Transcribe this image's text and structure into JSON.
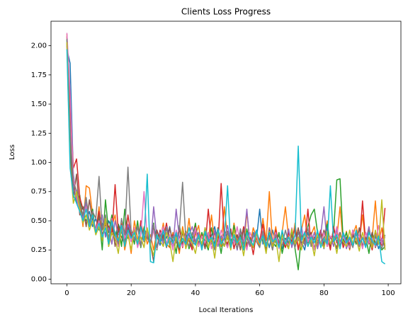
{
  "chart_data": {
    "type": "line",
    "title": "Clients Loss Progress",
    "xlabel": "Local Iterations",
    "ylabel": "Loss",
    "x": [
      0,
      1,
      2,
      3,
      4,
      5,
      6,
      7,
      8,
      9,
      10,
      11,
      12,
      13,
      14,
      15,
      16,
      17,
      18,
      19,
      20,
      21,
      22,
      23,
      24,
      25,
      26,
      27,
      28,
      29,
      30,
      31,
      32,
      33,
      34,
      35,
      36,
      37,
      38,
      39,
      40,
      41,
      42,
      43,
      44,
      45,
      46,
      47,
      48,
      49,
      50,
      51,
      52,
      53,
      54,
      55,
      56,
      57,
      58,
      59,
      60,
      61,
      62,
      63,
      64,
      65,
      66,
      67,
      68,
      69,
      70,
      71,
      72,
      73,
      74,
      75,
      76,
      77,
      78,
      79,
      80,
      81,
      82,
      83,
      84,
      85,
      86,
      87,
      88,
      89,
      90,
      91,
      92,
      93,
      94,
      95,
      96,
      97,
      98,
      99
    ],
    "xlim": [
      -4.95,
      103.95
    ],
    "xticks": [
      0,
      20,
      40,
      60,
      80,
      100
    ],
    "ylim": [
      -0.04,
      2.21
    ],
    "yticks": [
      {
        "value": 0,
        "label": "0.00"
      },
      {
        "value": 0.25,
        "label": "0.25"
      },
      {
        "value": 0.5,
        "label": "0.50"
      },
      {
        "value": 0.75,
        "label": "0.75"
      },
      {
        "value": 1,
        "label": "1.00"
      },
      {
        "value": 1.25,
        "label": "1.25"
      },
      {
        "value": 1.5,
        "label": "1.50"
      },
      {
        "value": 1.75,
        "label": "1.75"
      },
      {
        "value": 2,
        "label": "2.00"
      }
    ],
    "grid": false,
    "series": [
      {
        "color": "#1f77b4",
        "values": [
          1.97,
          1.85,
          0.9,
          0.7,
          0.62,
          0.55,
          0.5,
          0.58,
          0.45,
          0.52,
          0.42,
          0.48,
          0.38,
          0.5,
          0.44,
          0.36,
          0.47,
          0.4,
          0.33,
          0.45,
          0.38,
          0.42,
          0.3,
          0.46,
          0.35,
          0.4,
          0.32,
          0.44,
          0.37,
          0.29,
          0.41,
          0.35,
          0.45,
          0.3,
          0.38,
          0.27,
          0.42,
          0.33,
          0.39,
          0.28,
          0.44,
          0.35,
          0.31,
          0.4,
          0.26,
          0.37,
          0.45,
          0.3,
          0.35,
          0.28,
          0.41,
          0.33,
          0.38,
          0.25,
          0.43,
          0.3,
          0.36,
          0.29,
          0.4,
          0.34,
          0.6,
          0.3,
          0.37,
          0.27,
          0.42,
          0.31,
          0.38,
          0.26,
          0.35,
          0.3,
          0.41,
          0.28,
          0.36,
          0.32,
          0.25,
          0.4,
          0.3,
          0.35,
          0.27,
          0.38,
          0.31,
          0.44,
          0.29,
          0.34,
          0.26,
          0.39,
          0.3,
          0.36,
          0.28,
          0.42,
          0.3,
          0.35,
          0.27,
          0.4,
          0.32,
          0.29,
          0.37,
          0.26,
          0.34,
          0.3
        ]
      },
      {
        "color": "#ff7f0e",
        "values": [
          2.1,
          1.4,
          0.85,
          0.75,
          0.68,
          0.45,
          0.8,
          0.78,
          0.55,
          0.4,
          0.62,
          0.35,
          0.5,
          0.28,
          0.45,
          0.55,
          0.32,
          0.48,
          0.25,
          0.4,
          0.22,
          0.5,
          0.35,
          0.28,
          0.45,
          0.3,
          0.38,
          0.25,
          0.42,
          0.33,
          0.48,
          0.3,
          0.27,
          0.4,
          0.35,
          0.22,
          0.45,
          0.31,
          0.52,
          0.28,
          0.38,
          0.46,
          0.25,
          0.41,
          0.33,
          0.55,
          0.3,
          0.44,
          0.28,
          0.62,
          0.35,
          0.27,
          0.48,
          0.32,
          0.4,
          0.25,
          0.58,
          0.3,
          0.44,
          0.35,
          0.28,
          0.52,
          0.33,
          0.75,
          0.3,
          0.45,
          0.27,
          0.4,
          0.62,
          0.35,
          0.3,
          0.48,
          0.26,
          0.42,
          0.55,
          0.31,
          0.38,
          0.45,
          0.28,
          0.4,
          0.33,
          0.5,
          0.27,
          0.44,
          0.35,
          0.62,
          0.3,
          0.41,
          0.25,
          0.38,
          0.46,
          0.32,
          0.55,
          0.29,
          0.4,
          0.35,
          0.67,
          0.3,
          0.44,
          0.28
        ]
      },
      {
        "color": "#2ca02c",
        "values": [
          2.05,
          1.2,
          0.8,
          0.65,
          0.72,
          0.5,
          0.55,
          0.48,
          0.6,
          0.38,
          0.52,
          0.25,
          0.68,
          0.4,
          0.55,
          0.33,
          0.47,
          0.28,
          0.6,
          0.35,
          0.42,
          0.3,
          0.5,
          0.27,
          0.44,
          0.36,
          0.31,
          0.48,
          0.25,
          0.4,
          0.33,
          0.45,
          0.28,
          0.38,
          0.22,
          0.46,
          0.3,
          0.41,
          0.26,
          0.35,
          0.48,
          0.28,
          0.4,
          0.32,
          0.25,
          0.44,
          0.3,
          0.37,
          0.22,
          0.42,
          0.35,
          0.28,
          0.46,
          0.3,
          0.38,
          0.25,
          0.43,
          0.31,
          0.27,
          0.4,
          0.3,
          0.36,
          0.25,
          0.44,
          0.32,
          0.28,
          0.4,
          0.22,
          0.35,
          0.3,
          0.42,
          0.26,
          0.08,
          0.38,
          0.31,
          0.45,
          0.55,
          0.6,
          0.4,
          0.3,
          0.35,
          0.47,
          0.28,
          0.4,
          0.85,
          0.86,
          0.32,
          0.4,
          0.26,
          0.38,
          0.3,
          0.44,
          0.27,
          0.36,
          0.22,
          0.4,
          0.31,
          0.35,
          0.25,
          0.28
        ]
      },
      {
        "color": "#d62728",
        "values": [
          2.08,
          1.5,
          0.95,
          1.03,
          0.7,
          0.6,
          0.65,
          0.48,
          0.55,
          0.42,
          0.58,
          0.35,
          0.5,
          0.45,
          0.38,
          0.81,
          0.4,
          0.47,
          0.32,
          0.55,
          0.36,
          0.44,
          0.28,
          0.5,
          0.33,
          0.4,
          0.3,
          0.46,
          0.26,
          0.42,
          0.35,
          0.48,
          0.29,
          0.38,
          0.31,
          0.44,
          0.27,
          0.4,
          0.33,
          0.25,
          0.45,
          0.3,
          0.38,
          0.27,
          0.6,
          0.32,
          0.4,
          0.28,
          0.82,
          0.35,
          0.3,
          0.43,
          0.26,
          0.38,
          0.31,
          0.45,
          0.28,
          0.36,
          0.21,
          0.4,
          0.33,
          0.47,
          0.29,
          0.38,
          0.25,
          0.42,
          0.31,
          0.35,
          0.27,
          0.4,
          0.32,
          0.44,
          0.25,
          0.38,
          0.3,
          0.6,
          0.28,
          0.36,
          0.33,
          0.42,
          0.29,
          0.37,
          0.25,
          0.45,
          0.31,
          0.4,
          0.27,
          0.35,
          0.3,
          0.42,
          0.34,
          0.28,
          0.67,
          0.3,
          0.36,
          0.25,
          0.4,
          0.33,
          0.29,
          0.61
        ]
      },
      {
        "color": "#9467bd",
        "values": [
          2.0,
          1.3,
          0.78,
          0.68,
          0.6,
          0.52,
          0.66,
          0.45,
          0.5,
          0.4,
          0.48,
          0.55,
          0.36,
          0.44,
          0.3,
          0.5,
          0.38,
          0.42,
          0.33,
          0.47,
          0.4,
          0.35,
          0.45,
          0.3,
          0.38,
          0.42,
          0.28,
          0.62,
          0.35,
          0.4,
          0.3,
          0.45,
          0.33,
          0.27,
          0.6,
          0.35,
          0.41,
          0.29,
          0.38,
          0.45,
          0.32,
          0.4,
          0.27,
          0.44,
          0.35,
          0.3,
          0.42,
          0.28,
          0.37,
          0.33,
          0.46,
          0.3,
          0.38,
          0.25,
          0.41,
          0.33,
          0.6,
          0.28,
          0.36,
          0.42,
          0.3,
          0.38,
          0.26,
          0.44,
          0.32,
          0.4,
          0.28,
          0.35,
          0.3,
          0.43,
          0.27,
          0.38,
          0.33,
          0.45,
          0.29,
          0.36,
          0.31,
          0.4,
          0.26,
          0.38,
          0.62,
          0.3,
          0.37,
          0.28,
          0.43,
          0.32,
          0.39,
          0.26,
          0.35,
          0.3,
          0.41,
          0.28,
          0.36,
          0.32,
          0.45,
          0.29,
          0.38,
          0.31,
          0.35,
          0.26
        ]
      },
      {
        "color": "#8c564b",
        "values": [
          2.02,
          1.1,
          0.7,
          0.9,
          0.55,
          0.62,
          0.45,
          0.68,
          0.5,
          0.4,
          0.55,
          0.38,
          0.46,
          0.33,
          0.5,
          0.28,
          0.42,
          0.36,
          0.3,
          0.44,
          0.35,
          0.4,
          0.28,
          0.46,
          0.32,
          0.38,
          0.3,
          0.15,
          0.42,
          0.33,
          0.38,
          0.27,
          0.44,
          0.31,
          0.36,
          0.25,
          0.4,
          0.3,
          0.35,
          0.28,
          0.42,
          0.31,
          0.37,
          0.26,
          0.4,
          0.33,
          0.29,
          0.44,
          0.3,
          0.36,
          0.27,
          0.41,
          0.32,
          0.38,
          0.25,
          0.43,
          0.3,
          0.35,
          0.28,
          0.4,
          0.31,
          0.37,
          0.26,
          0.42,
          0.3,
          0.36,
          0.28,
          0.4,
          0.32,
          0.27,
          0.38,
          0.3,
          0.44,
          0.28,
          0.35,
          0.31,
          0.4,
          0.26,
          0.37,
          0.3,
          0.42,
          0.28,
          0.36,
          0.32,
          0.27,
          0.4,
          0.3,
          0.35,
          0.26,
          0.38,
          0.31,
          0.44,
          0.28,
          0.36,
          0.3,
          0.4,
          0.27,
          0.35,
          0.32,
          0.29
        ]
      },
      {
        "color": "#e377c2",
        "values": [
          2.11,
          1.6,
          0.88,
          0.72,
          0.58,
          0.5,
          0.62,
          0.45,
          0.55,
          0.42,
          0.5,
          0.36,
          0.45,
          0.3,
          0.52,
          0.38,
          0.28,
          0.46,
          0.35,
          0.4,
          0.32,
          0.44,
          0.27,
          0.38,
          0.75,
          0.35,
          0.3,
          0.42,
          0.26,
          0.37,
          0.45,
          0.3,
          0.38,
          0.25,
          0.42,
          0.33,
          0.28,
          0.4,
          0.35,
          0.3,
          0.44,
          0.28,
          0.37,
          0.31,
          0.4,
          0.26,
          0.35,
          0.3,
          0.42,
          0.33,
          0.27,
          0.38,
          0.31,
          0.45,
          0.29,
          0.36,
          0.25,
          0.4,
          0.32,
          0.37,
          0.3,
          0.42,
          0.28,
          0.35,
          0.31,
          0.4,
          0.26,
          0.37,
          0.33,
          0.29,
          0.44,
          0.3,
          0.36,
          0.27,
          0.41,
          0.32,
          0.38,
          0.25,
          0.35,
          0.3,
          0.4,
          0.28,
          0.37,
          0.33,
          0.45,
          0.29,
          0.36,
          0.31,
          0.27,
          0.42,
          0.33,
          0.38,
          0.26,
          0.4,
          0.31,
          0.35,
          0.28,
          0.46,
          0.3,
          0.36
        ]
      },
      {
        "color": "#7f7f7f",
        "values": [
          2.06,
          1.25,
          0.82,
          0.76,
          0.65,
          0.55,
          0.7,
          0.48,
          0.58,
          0.52,
          0.88,
          0.42,
          0.55,
          0.35,
          0.48,
          0.4,
          0.3,
          0.52,
          0.38,
          0.96,
          0.4,
          0.33,
          0.45,
          0.28,
          0.42,
          0.35,
          0.3,
          0.47,
          0.27,
          0.38,
          0.33,
          0.44,
          0.29,
          0.37,
          0.31,
          0.42,
          0.83,
          0.35,
          0.28,
          0.4,
          0.3,
          0.38,
          0.27,
          0.44,
          0.32,
          0.36,
          0.25,
          0.41,
          0.33,
          0.29,
          0.4,
          0.31,
          0.37,
          0.26,
          0.43,
          0.3,
          0.35,
          0.28,
          0.39,
          0.32,
          0.27,
          0.41,
          0.3,
          0.36,
          0.25,
          0.38,
          0.33,
          0.29,
          0.42,
          0.31,
          0.36,
          0.27,
          0.4,
          0.32,
          0.3,
          0.44,
          0.28,
          0.35,
          0.31,
          0.38,
          0.26,
          0.41,
          0.3,
          0.37,
          0.33,
          0.28,
          0.4,
          0.32,
          0.36,
          0.27,
          0.39,
          0.31,
          0.35,
          0.28,
          0.42,
          0.3,
          0.37,
          0.33,
          0.26,
          0.38
        ]
      },
      {
        "color": "#bcbd22",
        "values": [
          2.03,
          1.0,
          0.65,
          0.75,
          0.6,
          0.48,
          0.55,
          0.42,
          0.5,
          0.38,
          0.45,
          0.33,
          0.52,
          0.28,
          0.4,
          0.35,
          0.22,
          0.45,
          0.3,
          0.38,
          0.25,
          0.42,
          0.31,
          0.36,
          0.27,
          0.44,
          0.3,
          0.2,
          0.38,
          0.33,
          0.28,
          0.4,
          0.32,
          0.15,
          0.36,
          0.3,
          0.42,
          0.26,
          0.35,
          0.31,
          0.22,
          0.38,
          0.3,
          0.44,
          0.27,
          0.35,
          0.18,
          0.4,
          0.32,
          0.28,
          0.37,
          0.25,
          0.42,
          0.3,
          0.35,
          0.2,
          0.38,
          0.33,
          0.27,
          0.4,
          0.3,
          0.36,
          0.22,
          0.41,
          0.28,
          0.35,
          0.15,
          0.38,
          0.31,
          0.26,
          0.43,
          0.3,
          0.36,
          0.25,
          0.4,
          0.28,
          0.34,
          0.2,
          0.38,
          0.31,
          0.27,
          0.41,
          0.3,
          0.36,
          0.22,
          0.38,
          0.32,
          0.28,
          0.42,
          0.3,
          0.35,
          0.24,
          0.4,
          0.31,
          0.36,
          0.27,
          0.42,
          0.3,
          0.68,
          0.25
        ]
      },
      {
        "color": "#17becf",
        "values": [
          1.97,
          0.95,
          0.72,
          0.65,
          0.58,
          0.5,
          0.6,
          0.45,
          0.55,
          0.4,
          0.48,
          0.36,
          0.44,
          0.3,
          0.5,
          0.38,
          0.33,
          0.46,
          0.28,
          0.42,
          0.35,
          0.4,
          0.3,
          0.45,
          0.33,
          0.9,
          0.15,
          0.14,
          0.38,
          0.32,
          0.42,
          0.28,
          0.36,
          0.31,
          0.4,
          0.27,
          0.35,
          0.3,
          0.44,
          0.33,
          0.29,
          0.38,
          0.25,
          0.41,
          0.32,
          0.36,
          0.28,
          0.43,
          0.3,
          0.35,
          0.8,
          0.27,
          0.38,
          0.31,
          0.36,
          0.25,
          0.4,
          0.33,
          0.29,
          0.42,
          0.31,
          0.37,
          0.28,
          0.4,
          0.32,
          0.35,
          0.27,
          0.42,
          0.3,
          0.36,
          0.3,
          0.38,
          1.14,
          0.33,
          0.4,
          0.28,
          0.36,
          0.31,
          0.42,
          0.27,
          0.35,
          0.3,
          0.8,
          0.32,
          0.38,
          0.26,
          0.4,
          0.31,
          0.36,
          0.29,
          0.42,
          0.3,
          0.35,
          0.27,
          0.4,
          0.33,
          0.29,
          0.37,
          0.15,
          0.13
        ]
      }
    ]
  }
}
